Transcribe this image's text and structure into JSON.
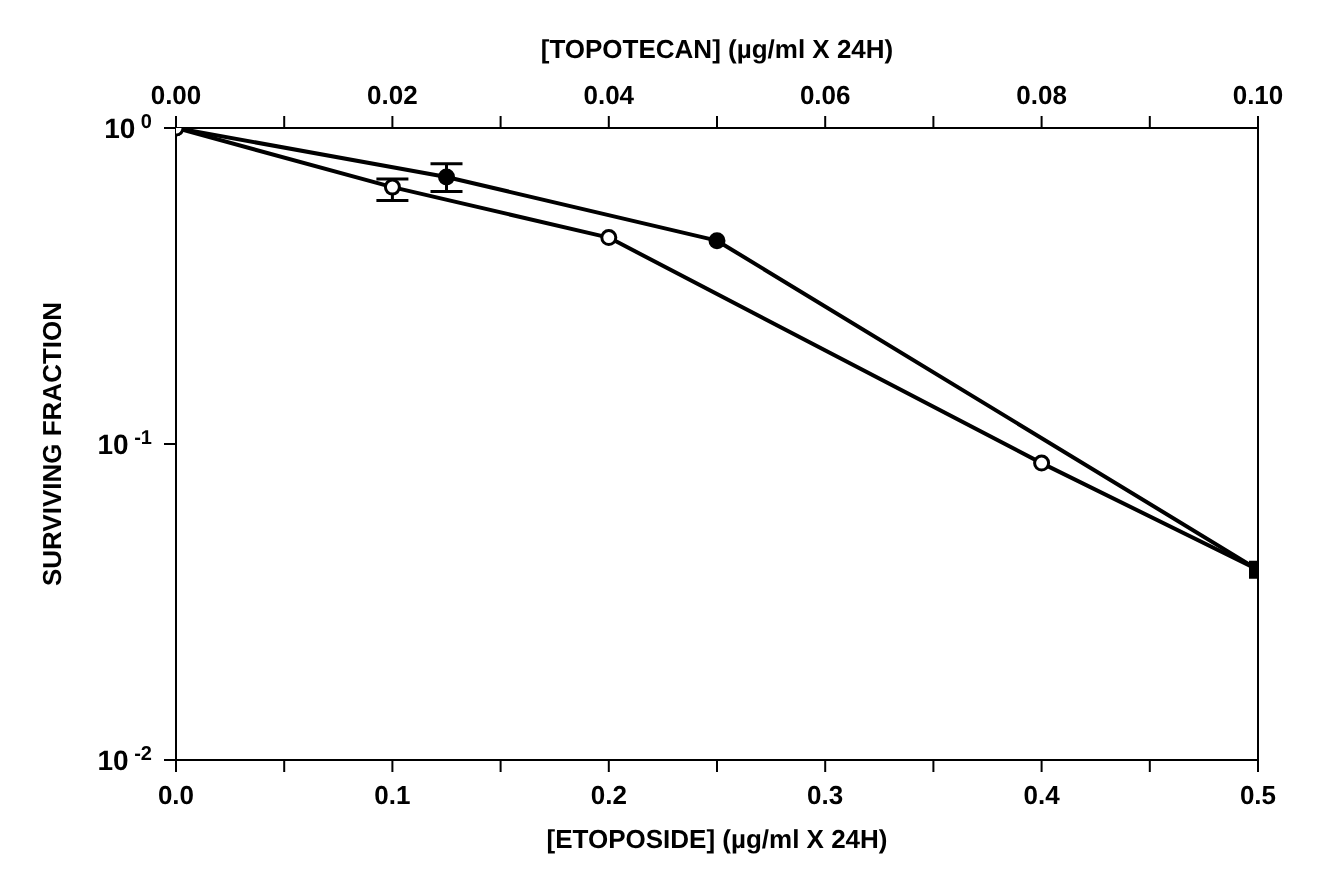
{
  "chart_data": {
    "type": "line",
    "xlabel": "[ETOPOSIDE]  (µg/ml  X  24H)",
    "x2label": "[TOPOTECAN]  (µg/ml  X  24H)",
    "ylabel": "SURVIVING  FRACTION",
    "log": "y",
    "grid": false,
    "legend": false,
    "line_style": "solid",
    "xlim": [
      0,
      0.5
    ],
    "xticks": [
      {
        "value": 0,
        "label": "0.0"
      },
      {
        "value": 0.05,
        "label": null
      },
      0.1,
      {
        "value": 0.15,
        "label": null
      },
      0.2,
      {
        "value": 0.25,
        "label": null
      },
      0.3,
      {
        "value": 0.35,
        "label": null
      },
      0.4,
      {
        "value": 0.45,
        "label": null
      },
      0.5
    ],
    "x2lim": [
      0,
      0.1
    ],
    "x2ticks": [
      {
        "value": 0,
        "label": "0.00"
      },
      {
        "value": 0.01,
        "label": null
      },
      0.02,
      {
        "value": 0.03,
        "label": null
      },
      0.04,
      {
        "value": 0.05,
        "label": null
      },
      0.06,
      {
        "value": 0.07,
        "label": null
      },
      0.08,
      {
        "value": 0.09,
        "label": null
      },
      {
        "value": 0.1,
        "label": "0.10"
      }
    ],
    "ylim": [
      0.01,
      1
    ],
    "yticks": [
      {
        "value": 0.01,
        "label": "10$^{-2}$"
      },
      {
        "value": 0.1,
        "label": "10$^{-1}$"
      },
      {
        "value": 1,
        "label": "10$^{0}$"
      }
    ],
    "series": [
      {
        "color": "#000000",
        "marker": "circle",
        "x": [
          0,
          0.125,
          0.25,
          0.5
        ],
        "values": [
          1,
          0.7,
          0.44,
          0.04
        ],
        "errors": [
          null,
          [
            0.63,
            0.77
          ],
          null,
          null
        ]
      },
      {
        "axis": "x2",
        "color": "#000000",
        "marker": "circle",
        "x": [
          0,
          0.02,
          0.04,
          0.08,
          0.1
        ],
        "values": [
          1,
          0.65,
          0.45,
          0.087,
          0.04
        ],
        "errors": [
          null,
          [
            0.59,
            0.69
          ],
          null,
          null,
          null
        ]
      },
      {
        "type": "scatter",
        "color": "#000000",
        "marker": "square",
        "x": [
          0.5
        ],
        "values": [
          0.04
        ]
      }
    ]
  }
}
